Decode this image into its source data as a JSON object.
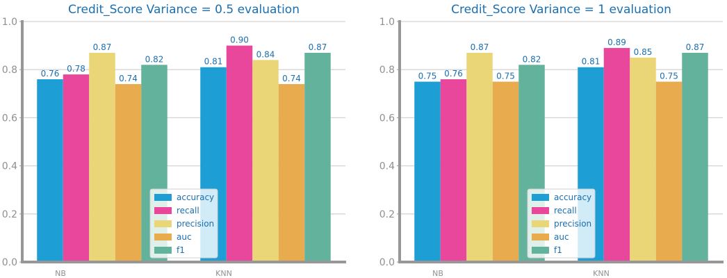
{
  "chart_data": [
    {
      "type": "bar",
      "title": "Credit_Score Variance = 0.5 evaluation",
      "xlabel": "",
      "ylabel": "",
      "categories": [
        "NB",
        "KNN"
      ],
      "ylim": [
        0,
        1.0
      ],
      "yticks": [
        "0.0",
        "0.2",
        "0.4",
        "0.6",
        "0.8",
        "1.0"
      ],
      "grid": "horizontal",
      "legend_position": "bottom-center",
      "series": [
        {
          "name": "accuracy",
          "color": "#1d9fd6",
          "values": [
            0.76,
            0.81
          ],
          "labels": [
            "0.76",
            "0.81"
          ]
        },
        {
          "name": "recall",
          "color": "#e8479c",
          "values": [
            0.78,
            0.9
          ],
          "labels": [
            "0.78",
            "0.90"
          ]
        },
        {
          "name": "precision",
          "color": "#ead577",
          "values": [
            0.87,
            0.84
          ],
          "labels": [
            "0.87",
            "0.84"
          ]
        },
        {
          "name": "auc",
          "color": "#e8ac4e",
          "values": [
            0.74,
            0.74
          ],
          "labels": [
            "0.74",
            "0.74"
          ]
        },
        {
          "name": "f1",
          "color": "#62b29c",
          "values": [
            0.82,
            0.87
          ],
          "labels": [
            "0.82",
            "0.87"
          ]
        }
      ]
    },
    {
      "type": "bar",
      "title": "Credit_Score Variance = 1 evaluation",
      "xlabel": "",
      "ylabel": "",
      "categories": [
        "NB",
        "KNN"
      ],
      "ylim": [
        0,
        1.0
      ],
      "yticks": [
        "0.0",
        "0.2",
        "0.4",
        "0.6",
        "0.8",
        "1.0"
      ],
      "grid": "horizontal",
      "legend_position": "bottom-center",
      "series": [
        {
          "name": "accuracy",
          "color": "#1d9fd6",
          "values": [
            0.75,
            0.81
          ],
          "labels": [
            "0.75",
            "0.81"
          ]
        },
        {
          "name": "recall",
          "color": "#e8479c",
          "values": [
            0.76,
            0.89
          ],
          "labels": [
            "0.76",
            "0.89"
          ]
        },
        {
          "name": "precision",
          "color": "#ead577",
          "values": [
            0.87,
            0.85
          ],
          "labels": [
            "0.87",
            "0.85"
          ]
        },
        {
          "name": "auc",
          "color": "#e8ac4e",
          "values": [
            0.75,
            0.75
          ],
          "labels": [
            "0.75",
            "0.75"
          ]
        },
        {
          "name": "f1",
          "color": "#62b29c",
          "values": [
            0.82,
            0.87
          ],
          "labels": [
            "0.82",
            "0.87"
          ]
        }
      ]
    }
  ]
}
